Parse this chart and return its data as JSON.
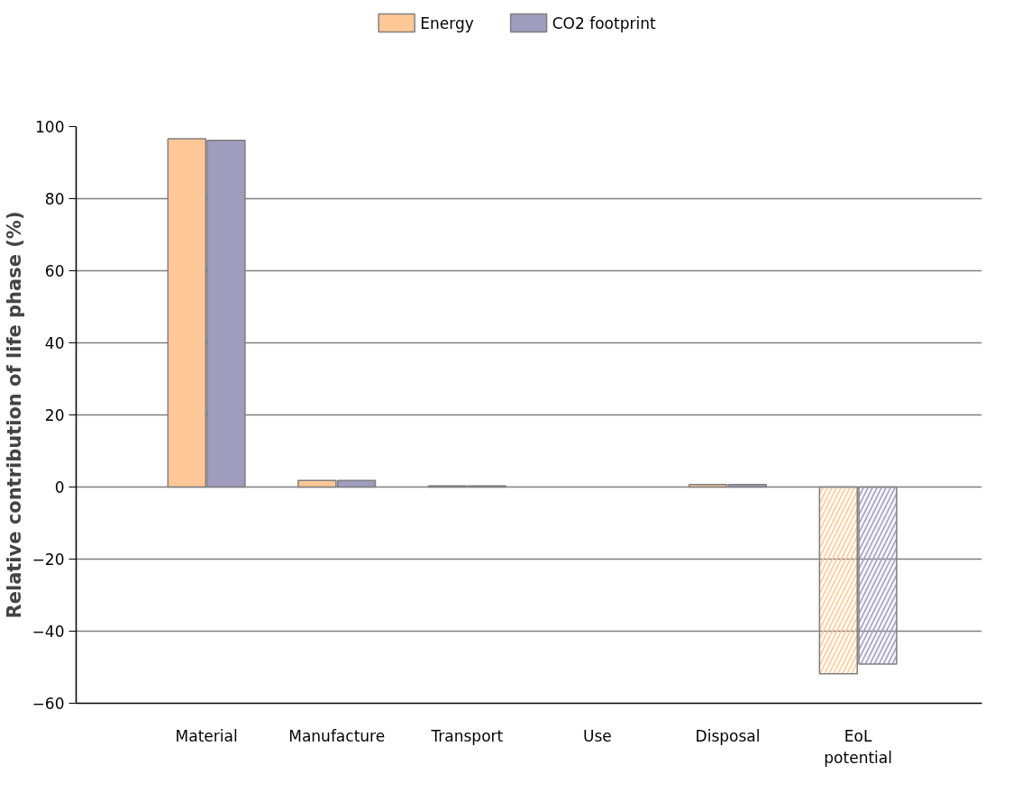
{
  "chart_data": {
    "type": "bar",
    "ylabel": "Relative contribution of life phase (%)",
    "categories": [
      "Material",
      "Manufacture",
      "Transport",
      "Use",
      "Disposal",
      "EoL potential"
    ],
    "series": [
      {
        "name": "Energy",
        "color": "#ffc896",
        "values": [
          96.6,
          1.8,
          0.3,
          null,
          0.7,
          -51.8
        ]
      },
      {
        "name": "CO2 footprint",
        "color": "#a09cbe",
        "values": [
          96.2,
          1.8,
          0.3,
          null,
          0.7,
          -49.1
        ]
      }
    ],
    "ylim": [
      -60,
      100
    ],
    "yticks": [
      -60,
      -40,
      -20,
      0,
      20,
      40,
      60,
      80,
      100
    ],
    "grid": "y",
    "legend": "top"
  }
}
